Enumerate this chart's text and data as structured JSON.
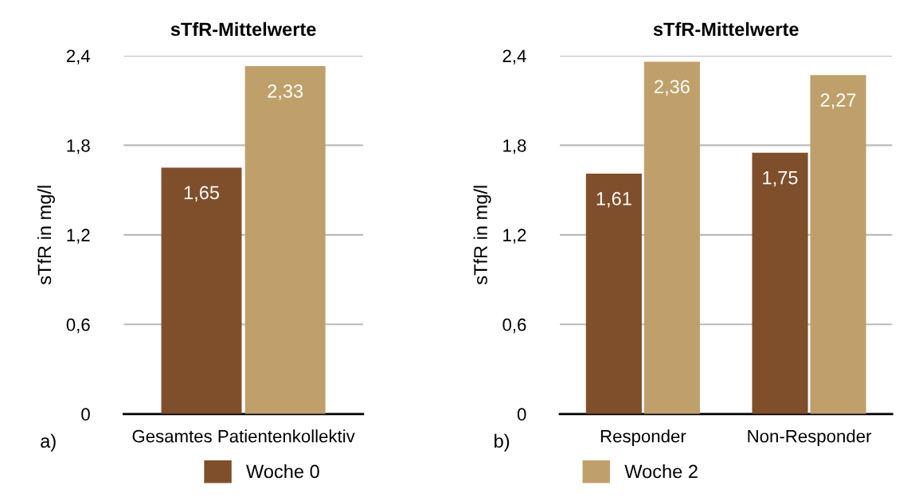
{
  "chart_data": [
    {
      "type": "bar",
      "title": "sTfR-Mittelwerte",
      "ylabel": "sTfR in mg/l",
      "categories": [
        "Gesamtes Patientenkollektiv"
      ],
      "series": [
        {
          "name": "Woche 0",
          "color": "#7f4f2b",
          "values": [
            1.65
          ],
          "value_labels": [
            "1,65"
          ]
        },
        {
          "name": "Woche 2",
          "color": "#bfa06b",
          "values": [
            2.33
          ],
          "value_labels": [
            "2,33"
          ]
        }
      ],
      "ylim": [
        0,
        2.4
      ],
      "yticks": [
        0,
        {
          "value": 0.6,
          "label": "0,6"
        },
        {
          "value": 1.2,
          "label": "1,2"
        },
        {
          "value": 1.8,
          "label": "1,8"
        },
        {
          "value": 2.4,
          "label": "2,4"
        }
      ],
      "grid": "y",
      "legend": "bottom",
      "annotations": [
        "a)"
      ]
    },
    {
      "type": "bar",
      "title": "sTfR-Mittelwerte",
      "ylabel": "sTfR in mg/l",
      "categories": [
        "Responder",
        "Non-Responder"
      ],
      "series": [
        {
          "name": "Woche 0",
          "color": "#7f4f2b",
          "values": [
            1.61,
            1.75
          ],
          "value_labels": [
            "1,61",
            "1,75"
          ]
        },
        {
          "name": "Woche 2",
          "color": "#bfa06b",
          "values": [
            2.36,
            2.27
          ],
          "value_labels": [
            "2,36",
            "2,27"
          ]
        }
      ],
      "ylim": [
        0,
        2.4
      ],
      "yticks": [
        0,
        {
          "value": 0.6,
          "label": "0,6"
        },
        {
          "value": 1.2,
          "label": "1,2"
        },
        {
          "value": 1.8,
          "label": "1,8"
        },
        {
          "value": 2.4,
          "label": "2,4"
        }
      ],
      "grid": "y",
      "annotations": [
        "b)"
      ]
    }
  ]
}
